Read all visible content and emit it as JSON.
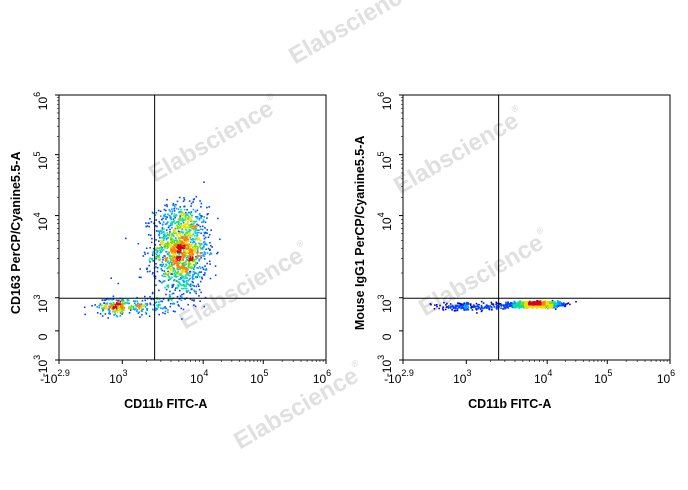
{
  "watermark": {
    "text": "Elabscience",
    "symbol": "®"
  },
  "colors": {
    "axis": "#000000",
    "gate": "#000000",
    "density": [
      "#0000cc",
      "#0044ff",
      "#00a0ff",
      "#00e0a0",
      "#70e000",
      "#f0e000",
      "#ff8000",
      "#e00000"
    ]
  },
  "chart_data": [
    {
      "type": "scatter",
      "subtype": "flow-cytometry-density",
      "title": "",
      "xlabel": "CD11b FITC-A",
      "ylabel": "CD163 PerCP/Cyanine5.5-A",
      "x_scale": "biexponential",
      "y_scale": "biexponential",
      "x_ticks": [
        {
          "base": "-10",
          "exp": "2.9"
        },
        {
          "base": "10",
          "exp": "3"
        },
        {
          "base": "10",
          "exp": "4"
        },
        {
          "base": "10",
          "exp": "5"
        },
        {
          "base": "10",
          "exp": "6"
        }
      ],
      "y_ticks": [
        {
          "base": "-10",
          "exp": "3"
        },
        {
          "base": "0",
          "exp": ""
        },
        {
          "base": "10",
          "exp": "3"
        },
        {
          "base": "10",
          "exp": "4"
        },
        {
          "base": "10",
          "exp": "5"
        },
        {
          "base": "10",
          "exp": "6"
        }
      ],
      "gate": {
        "x_log10": 3.4,
        "y_log10": 2.95
      },
      "populations": [
        {
          "name": "main",
          "x_log10": 3.72,
          "y_log10": 3.6,
          "sx_log10": 0.17,
          "sy_log10": 0.28,
          "count": 1400
        },
        {
          "name": "tail",
          "x_log10": 3.0,
          "y_log10": 2.3,
          "sx_log10": 0.35,
          "sy_log10": 0.4,
          "count": 320
        }
      ],
      "grid": false,
      "legend": "none"
    },
    {
      "type": "scatter",
      "subtype": "flow-cytometry-density",
      "title": "",
      "xlabel": "CD11b FITC-A",
      "ylabel": "Mouse IgG1 PerCP/Cyanine5.5-A",
      "x_scale": "biexponential",
      "y_scale": "biexponential",
      "x_ticks": [
        {
          "base": "-10",
          "exp": "2.9"
        },
        {
          "base": "10",
          "exp": "3"
        },
        {
          "base": "10",
          "exp": "4"
        },
        {
          "base": "10",
          "exp": "5"
        },
        {
          "base": "10",
          "exp": "6"
        }
      ],
      "y_ticks": [
        {
          "base": "-10",
          "exp": "3"
        },
        {
          "base": "0",
          "exp": ""
        },
        {
          "base": "10",
          "exp": "3"
        },
        {
          "base": "10",
          "exp": "4"
        },
        {
          "base": "10",
          "exp": "5"
        },
        {
          "base": "10",
          "exp": "6"
        }
      ],
      "gate": {
        "x_log10": 3.4,
        "y_log10": 2.95
      },
      "populations": [
        {
          "name": "main",
          "x_log10": 3.85,
          "y_log10": 2.45,
          "sx_log10": 0.17,
          "sy_log10": 0.12,
          "count": 1200
        },
        {
          "name": "tail",
          "x_log10": 3.05,
          "y_log10": 2.25,
          "sx_log10": 0.35,
          "sy_log10": 0.16,
          "count": 220
        }
      ],
      "grid": false,
      "legend": "none"
    }
  ]
}
